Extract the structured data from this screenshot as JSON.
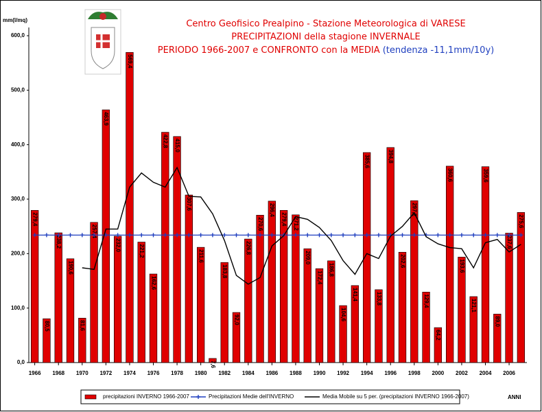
{
  "chart_data": {
    "type": "bar",
    "title": [
      "Centro Geofisico Prealpino - Stazione Meteorologica di VARESE",
      "PRECIPITAZIONI della stagione INVERNALE",
      "PERIODO 1966-2007 e CONFRONTO con la MEDIA"
    ],
    "subtitle": "(tendenza -11,1mm/10y)",
    "y_label": "mm(l/mq)",
    "x_label": "ANNI",
    "x": [
      1966,
      1967,
      1968,
      1969,
      1970,
      1971,
      1972,
      1973,
      1974,
      1975,
      1976,
      1977,
      1978,
      1979,
      1980,
      1981,
      1982,
      1983,
      1984,
      1985,
      1986,
      1987,
      1988,
      1989,
      1990,
      1991,
      1992,
      1993,
      1994,
      1995,
      1996,
      1997,
      1998,
      1999,
      2000,
      2001,
      2002,
      2003,
      2004,
      2005,
      2006,
      2007
    ],
    "xlim": [
      1965.5,
      2007.5
    ],
    "xticks": [
      1966,
      1968,
      1970,
      1972,
      1974,
      1976,
      1978,
      1980,
      1982,
      1984,
      1986,
      1988,
      1990,
      1992,
      1994,
      1996,
      1998,
      2000,
      2002,
      2004,
      2006
    ],
    "ylim": [
      0,
      600
    ],
    "yticks": [
      {
        "value": 0,
        "label": "0,0"
      },
      {
        "value": 100,
        "label": "100,0"
      },
      {
        "value": 200,
        "label": "200,0"
      },
      {
        "value": 300,
        "label": "300,0"
      },
      {
        "value": 400,
        "label": "400,0"
      },
      {
        "value": 500,
        "label": "500,0"
      },
      {
        "value": 600,
        "label": "600,0"
      }
    ],
    "grid": false,
    "series": [
      {
        "name": "precipitazioni INVERNO 1966-2007",
        "type": "bar",
        "color": "#e00000",
        "values": [
          279.4,
          80.5,
          238.2,
          190.6,
          81.6,
          257.4,
          463.9,
          232.0,
          569.4,
          221.2,
          162.6,
          422.8,
          415.0,
          307.6,
          211.6,
          7.6,
          183.8,
          92.0,
          226.8,
          270.6,
          296.4,
          279.4,
          271.2,
          209.0,
          172.4,
          186.8,
          104.6,
          141.4,
          385.6,
          133.8,
          394.8,
          202.6,
          297.2,
          129.4,
          64.2,
          360.6,
          193.6,
          121.1,
          359.6,
          89.0,
          237.6,
          275.6
        ],
        "value_labels": [
          "279,4",
          "80,5",
          "238,2",
          "190,6",
          "81,6",
          "257,4",
          "463,9",
          "232,0",
          "569,4",
          "221,2",
          "162,6",
          "422,8",
          "415,0",
          "307,6",
          "211,6",
          "7,6",
          "183,8",
          "92,0",
          "226,8",
          "270,6",
          "296,4",
          "279,4",
          "271,2",
          "209,0",
          "172,4",
          "186,8",
          "104,6",
          "141,4",
          "385,6",
          "133,8",
          "394,8",
          "202,6",
          "297,2",
          "129,4",
          "64,2",
          "360,6",
          "193,6",
          "121,1",
          "359,6",
          "89,0",
          "237,6",
          "275,6"
        ]
      },
      {
        "name": "Precipitazioni Medie dell'INVERNO",
        "type": "line",
        "marker": true,
        "color": "#1f3fbf",
        "values": [
          234,
          234,
          234,
          234,
          234,
          234,
          234,
          234,
          234,
          234,
          234,
          234,
          234,
          234,
          234,
          234,
          234,
          234,
          234,
          234,
          234,
          234,
          234,
          234,
          234,
          234,
          234,
          234,
          234,
          234,
          234,
          234,
          234,
          234,
          234,
          234,
          234,
          234,
          234,
          234,
          234,
          234
        ]
      },
      {
        "name": "Media Mobile su 5 per. (precipitazioni INVERNO 1966-2007)",
        "type": "line",
        "marker": false,
        "color": "#000000",
        "values": [
          null,
          null,
          null,
          null,
          174,
          171,
          245,
          245,
          322,
          348,
          331,
          322,
          358,
          305,
          304,
          273,
          224,
          160,
          144,
          156,
          214,
          233,
          268,
          263,
          248,
          224,
          187,
          162,
          200,
          191,
          232,
          250,
          275,
          231,
          218,
          211,
          209,
          174,
          220,
          226,
          203,
          217
        ]
      }
    ]
  }
}
